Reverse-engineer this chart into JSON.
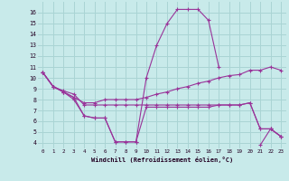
{
  "xlabel": "Windchill (Refroidissement éolien,°C)",
  "background_color": "#c8eaea",
  "grid_color": "#aad4d4",
  "line_color": "#993399",
  "xlim": [
    -0.5,
    23.5
  ],
  "ylim": [
    3.5,
    17
  ],
  "yticks": [
    4,
    5,
    6,
    7,
    8,
    9,
    10,
    11,
    12,
    13,
    14,
    15,
    16
  ],
  "xticks": [
    0,
    1,
    2,
    3,
    4,
    5,
    6,
    7,
    8,
    9,
    10,
    11,
    12,
    13,
    14,
    15,
    16,
    17,
    18,
    19,
    20,
    21,
    22,
    23
  ],
  "series": [
    [
      10.5,
      9.2,
      8.7,
      8.0,
      6.5,
      6.3,
      6.3,
      4.1,
      4.1,
      4.1,
      10.0,
      13.0,
      15.0,
      16.3,
      16.3,
      16.3,
      15.3,
      11.0,
      null,
      null,
      null,
      null,
      null,
      null
    ],
    [
      10.5,
      9.2,
      8.7,
      8.2,
      7.7,
      7.7,
      8.0,
      8.0,
      8.0,
      8.0,
      8.2,
      8.5,
      8.7,
      9.0,
      9.2,
      9.5,
      9.7,
      10.0,
      10.2,
      10.3,
      10.7,
      10.7,
      11.0,
      10.7
    ],
    [
      10.5,
      9.2,
      8.8,
      8.5,
      7.5,
      7.5,
      7.5,
      7.5,
      7.5,
      7.5,
      7.5,
      7.5,
      7.5,
      7.5,
      7.5,
      7.5,
      7.5,
      7.5,
      7.5,
      7.5,
      7.7,
      5.3,
      5.3,
      4.6
    ],
    [
      10.5,
      9.2,
      8.7,
      8.2,
      6.5,
      6.3,
      6.3,
      4.1,
      4.1,
      4.1,
      7.3,
      7.3,
      7.3,
      7.3,
      7.3,
      7.3,
      7.3,
      7.5,
      7.5,
      7.5,
      7.7,
      5.3,
      5.3,
      4.6
    ],
    [
      null,
      null,
      null,
      null,
      null,
      null,
      null,
      null,
      null,
      null,
      null,
      null,
      null,
      null,
      null,
      null,
      null,
      null,
      null,
      null,
      null,
      3.8,
      5.3,
      4.6
    ]
  ]
}
